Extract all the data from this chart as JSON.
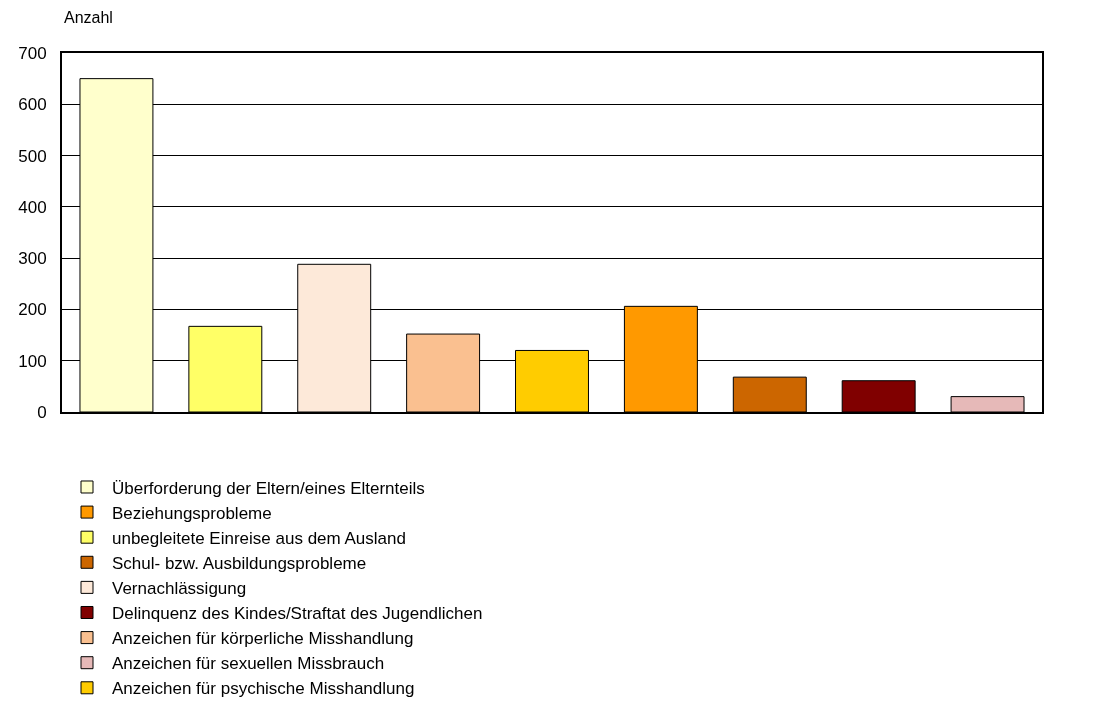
{
  "chart_data": {
    "type": "bar",
    "ylabel": "Anzahl",
    "categories": [
      null,
      null,
      null,
      null,
      null,
      null,
      null,
      null,
      null
    ],
    "series": [
      {
        "name": "Überforderung der Eltern/eines Elternteils",
        "color": "#ffffcc",
        "values": [
          650,
          null,
          null,
          null,
          null,
          null,
          null,
          null,
          null
        ]
      },
      {
        "name": "unbegleitete Einreise aus dem Ausland",
        "color": "#ffff66",
        "values": [
          null,
          167,
          null,
          null,
          null,
          null,
          null,
          null,
          null
        ]
      },
      {
        "name": "Vernachlässigung",
        "color": "#fde9d9",
        "values": [
          null,
          null,
          288,
          null,
          null,
          null,
          null,
          null,
          null
        ]
      },
      {
        "name": "Anzeichen für körperliche Misshandlung",
        "color": "#fac090",
        "values": [
          null,
          null,
          null,
          152,
          null,
          null,
          null,
          null,
          null
        ]
      },
      {
        "name": "Anzeichen für psychische Misshandlung",
        "color": "#ffcc00",
        "values": [
          null,
          null,
          null,
          null,
          120,
          null,
          null,
          null,
          null
        ]
      },
      {
        "name": "Beziehungsprobleme",
        "color": "#ff9900",
        "values": [
          null,
          null,
          null,
          null,
          null,
          206,
          null,
          null,
          null
        ]
      },
      {
        "name": "Schul- bzw. Ausbildungsprobleme",
        "color": "#cc6600",
        "values": [
          null,
          null,
          null,
          null,
          null,
          null,
          68,
          null,
          null
        ]
      },
      {
        "name": "Delinquenz des Kindes/Straftat des Jugendlichen",
        "color": "#800000",
        "values": [
          null,
          null,
          null,
          null,
          null,
          null,
          null,
          61,
          null
        ]
      },
      {
        "name": "Anzeichen für sexuellen Missbrauch",
        "color": "#e6b9b8",
        "values": [
          null,
          null,
          null,
          null,
          null,
          null,
          null,
          null,
          30
        ]
      }
    ],
    "ylim": [
      0,
      700
    ],
    "yticks": [
      0,
      100,
      200,
      300,
      400,
      500,
      600,
      700
    ],
    "grid": "y",
    "legend": "bottom",
    "tick_labels": "y"
  }
}
